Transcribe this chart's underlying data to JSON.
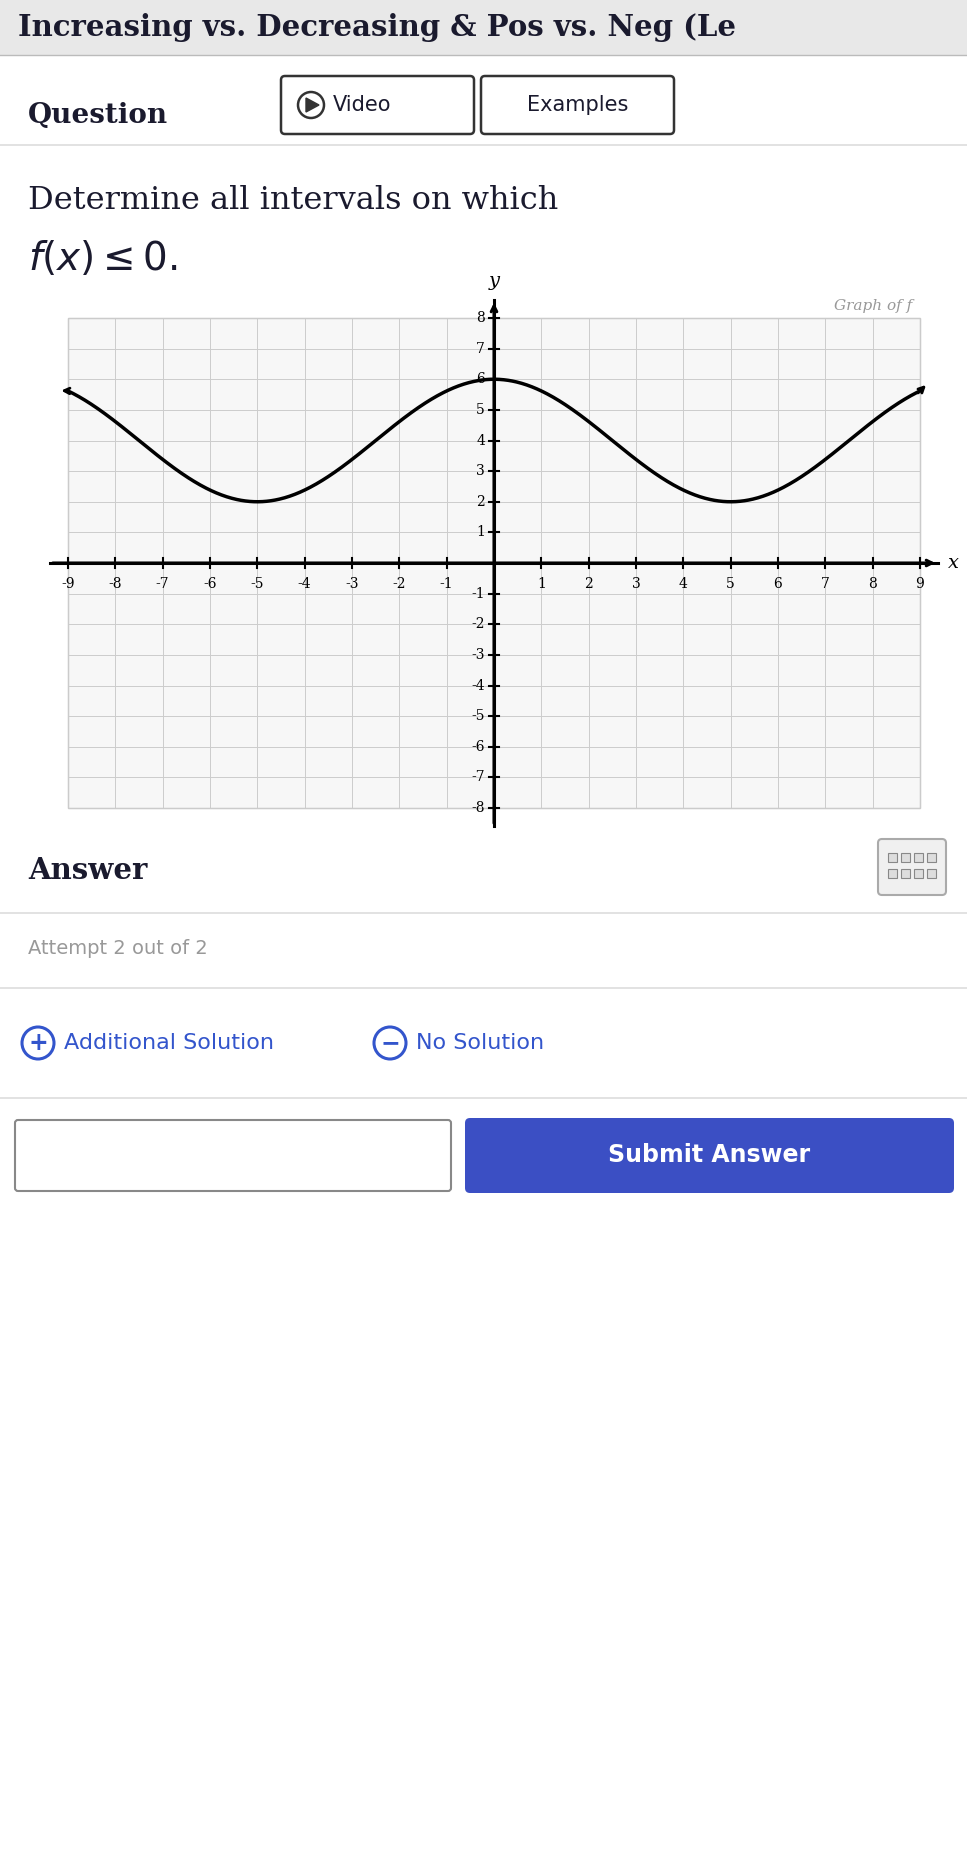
{
  "title": "Increasing vs. Decreasing & Pos vs. Neg (Le",
  "question_label": "Question",
  "video_label": "Video",
  "examples_label": "Examples",
  "problem_text_line1": "Determine all intervals on which",
  "problem_text_line2": "$f(x) \\leq 0.$",
  "graph_label": "Graph of f",
  "x_label": "x",
  "y_label": "y",
  "x_min": -9,
  "x_max": 9,
  "y_min": -8,
  "y_max": 8,
  "answer_label": "Answer",
  "attempt_label": "Attempt 2 out of 2",
  "additional_solution_label": "Additional Solution",
  "no_solution_label": "No Solution",
  "submit_label": "Submit Answer",
  "bg_color": "#ffffff",
  "grid_color": "#cccccc",
  "curve_color": "#000000",
  "axis_color": "#000000",
  "title_bg_color": "#e8e8e8",
  "button_border_color": "#333333",
  "submit_bg_color": "#3b4fc4",
  "submit_text_color": "#ffffff",
  "blue_color": "#3355cc",
  "gray_text_color": "#999999",
  "separator_color": "#dddddd",
  "title_bar_height": 55,
  "fig_width": 9.67,
  "fig_height": 18.71,
  "dpi": 100
}
